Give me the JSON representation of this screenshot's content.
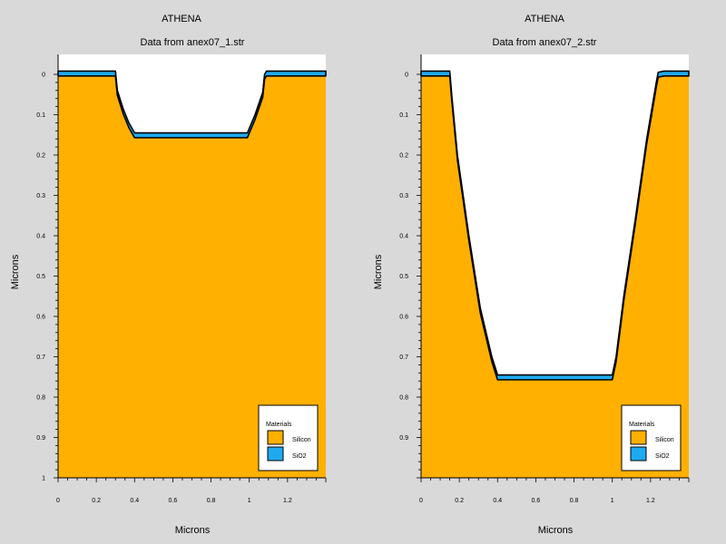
{
  "chart_data": [
    {
      "type": "area",
      "title": "ATHENA",
      "subtitle": "Data from anex07_1.str",
      "xlabel": "Microns",
      "ylabel": "Microns",
      "xlim": [
        0,
        1.4
      ],
      "ylim": [
        1,
        0
      ],
      "y_inverted": true,
      "xticks": [
        "0",
        "0.2",
        "0.4",
        "0.6",
        "0.8",
        "1",
        "1.2"
      ],
      "yticks": [
        "0",
        "0.1",
        "0.2",
        "0.3",
        "0.4",
        "0.5",
        "0.6",
        "0.7",
        "0.8",
        "0.9",
        "1"
      ],
      "legend": {
        "title": "Materials",
        "placement": "bottom-right",
        "entries": [
          {
            "name": "Silicon",
            "color": "#ffb000"
          },
          {
            "name": "SiO2",
            "color": "#1eaaf0"
          }
        ]
      },
      "surface_profile": {
        "x": [
          0,
          0.3,
          0.31,
          0.34,
          0.37,
          0.4,
          0.99,
          1.03,
          1.07,
          1.08,
          1.09,
          1.4
        ],
        "y": [
          -0.008,
          -0.008,
          0.04,
          0.085,
          0.12,
          0.145,
          0.145,
          0.1,
          0.045,
          0.0,
          -0.008,
          -0.008
        ]
      },
      "oxide_thickness": 0.012,
      "colors": {
        "silicon": "#ffb000",
        "oxide": "#1eaaf0",
        "background": "#d9d9d9",
        "plot": "#ffffff"
      }
    },
    {
      "type": "area",
      "title": "ATHENA",
      "subtitle": "Data from anex07_2.str",
      "xlabel": "Microns",
      "ylabel": "Microns",
      "xlim": [
        0,
        1.4
      ],
      "ylim": [
        1,
        0
      ],
      "y_inverted": true,
      "xticks": [
        "0",
        "0.2",
        "0.4",
        "0.6",
        "0.8",
        "1",
        "1.2"
      ],
      "yticks": [
        "0",
        "0.1",
        "0.2",
        "0.3",
        "0.4",
        "0.5",
        "0.6",
        "0.7",
        "0.8",
        "0.9"
      ],
      "legend": {
        "title": "Materials",
        "placement": "bottom-right",
        "entries": [
          {
            "name": "Silicon",
            "color": "#ffb000"
          },
          {
            "name": "SiO2",
            "color": "#1eaaf0"
          }
        ]
      },
      "surface_profile": {
        "x": [
          0,
          0.15,
          0.16,
          0.19,
          0.25,
          0.31,
          0.37,
          0.4,
          0.42,
          1.0,
          1.02,
          1.06,
          1.12,
          1.18,
          1.23,
          1.24,
          1.27,
          1.4
        ],
        "y": [
          -0.008,
          -0.008,
          0.05,
          0.2,
          0.4,
          0.58,
          0.7,
          0.745,
          0.745,
          0.745,
          0.7,
          0.55,
          0.36,
          0.16,
          0.02,
          -0.005,
          -0.008,
          -0.008
        ]
      },
      "oxide_thickness": 0.012,
      "colors": {
        "silicon": "#ffb000",
        "oxide": "#1eaaf0",
        "background": "#d9d9d9",
        "plot": "#ffffff"
      }
    }
  ]
}
